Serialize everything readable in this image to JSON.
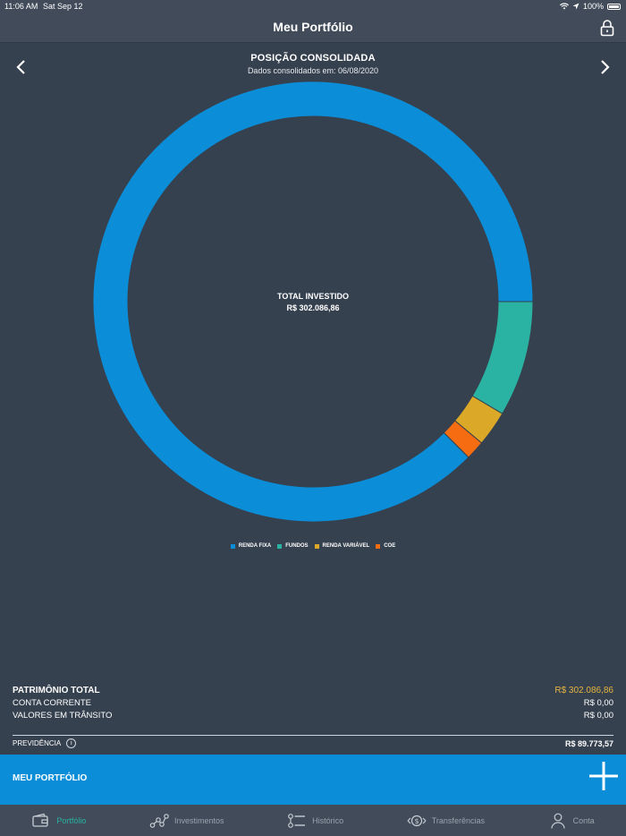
{
  "status_bar": {
    "time": "11:06 AM",
    "date": "Sat Sep 12",
    "battery": "100%"
  },
  "header": {
    "title": "Meu Portfólio"
  },
  "position": {
    "title": "POSIÇÃO CONSOLIDADA",
    "subtitle": "Dados consolidados em: 06/08/2020"
  },
  "chart_center": {
    "label": "TOTAL INVESTIDO",
    "value": "R$  302.086,86"
  },
  "chart_data": {
    "type": "pie",
    "categories": [
      "RENDA FIXA",
      "FUNDOS",
      "RENDA VARIÁVEL",
      "COE"
    ],
    "values": [
      87.5,
      8.5,
      2.6,
      1.4
    ],
    "colors": [
      "#0b8ed7",
      "#2ab3a2",
      "#dba828",
      "#f56d10"
    ],
    "legend_position": "bottom"
  },
  "summary": {
    "total_label": "PATRIMÔNIO TOTAL",
    "total_value": "R$  302.086,86",
    "rows": [
      {
        "label": "CONTA CORRENTE",
        "value": "R$ 0,00"
      },
      {
        "label": "VALORES EM TRÂNSITO",
        "value": "R$ 0,00"
      }
    ],
    "prev_label": "PREVIDÊNCIA",
    "prev_info": "i",
    "prev_value": "R$ 89.773,57"
  },
  "bottom_bar": {
    "label": "MEU PORTFÓLIO"
  },
  "tabs": [
    {
      "label": "Portfólio",
      "icon": "wallet-icon"
    },
    {
      "label": "Investimentos",
      "icon": "investments-icon"
    },
    {
      "label": "Histórico",
      "icon": "history-icon"
    },
    {
      "label": "Transferências",
      "icon": "transfer-icon"
    },
    {
      "label": "Conta",
      "icon": "user-icon"
    }
  ],
  "colors": {
    "accent": "#0b8ed7",
    "active_tab": "#2ab3a2",
    "highlight": "#e5b540"
  }
}
